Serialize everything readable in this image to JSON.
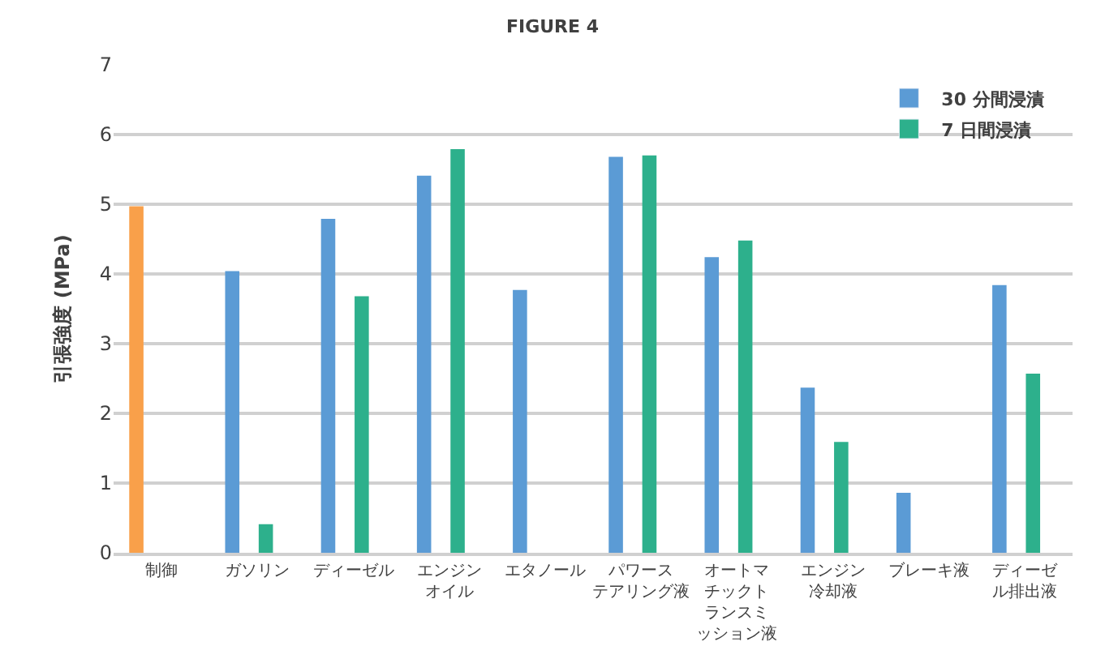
{
  "chart_data": {
    "type": "bar",
    "title": "FIGURE 4",
    "ylabel": "引張強度 (MPa)",
    "categories": [
      "制御",
      "ガソリン",
      "ディーゼル",
      "エンジンオイル",
      "エタノール",
      "パワーステアリング液",
      "オートマチックトランスミッション液",
      "エンジン冷却液",
      "ブレーキ液",
      "ディーゼル排出液"
    ],
    "series": [
      {
        "name": "30 分間浸漬",
        "color": "#5b9bd5",
        "colors": [
          "#f9a04a",
          "#5b9bd5",
          "#5b9bd5",
          "#5b9bd5",
          "#5b9bd5",
          "#5b9bd5",
          "#5b9bd5",
          "#5b9bd5",
          "#5b9bd5",
          "#5b9bd5"
        ],
        "values": [
          4.97,
          4.04,
          4.79,
          5.41,
          3.77,
          5.68,
          4.24,
          2.37,
          0.86,
          3.84
        ]
      },
      {
        "name": "7 日間浸漬",
        "color": "#2db08c",
        "values": [
          null,
          0.41,
          3.68,
          5.79,
          null,
          5.7,
          4.48,
          1.59,
          null,
          2.57
        ]
      }
    ],
    "ylim": [
      0,
      7
    ],
    "yticks": [
      0,
      1,
      2,
      3,
      4,
      5,
      6,
      7
    ],
    "grid": "y",
    "legend": "top right"
  }
}
